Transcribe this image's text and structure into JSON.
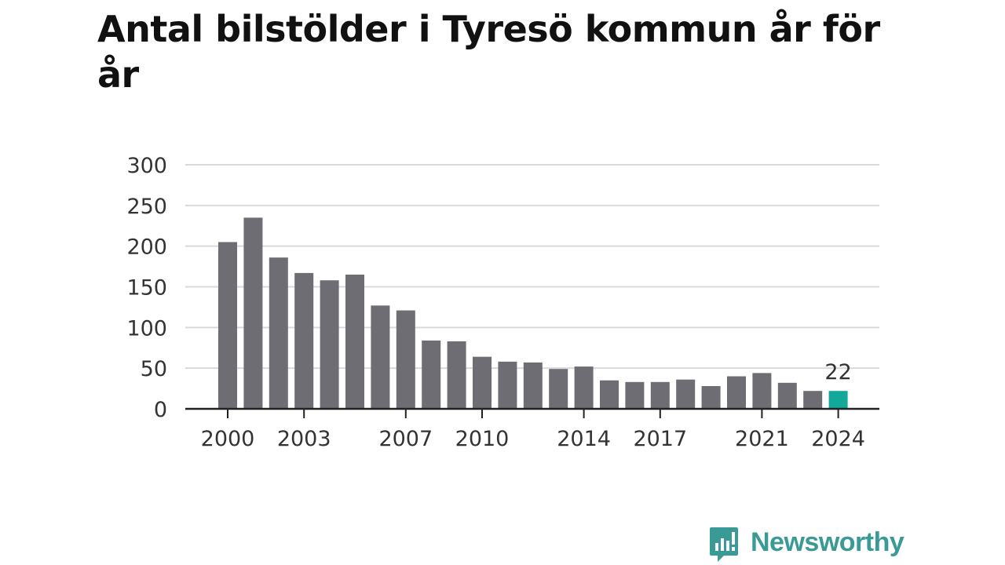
{
  "chart_data": {
    "type": "bar",
    "title": "Antal bilstölder i Tyresö kommun år för år",
    "xlabel": "",
    "ylabel": "",
    "categories": [
      "2000",
      "2001",
      "2002",
      "2003",
      "2004",
      "2005",
      "2006",
      "2007",
      "2008",
      "2009",
      "2010",
      "2011",
      "2012",
      "2013",
      "2014",
      "2015",
      "2016",
      "2017",
      "2018",
      "2019",
      "2020",
      "2021",
      "2022",
      "2023",
      "2024"
    ],
    "values": [
      205,
      235,
      186,
      167,
      158,
      165,
      127,
      121,
      84,
      83,
      64,
      58,
      57,
      49,
      52,
      35,
      33,
      33,
      36,
      28,
      40,
      44,
      32,
      22,
      22
    ],
    "ylim": [
      0,
      300
    ],
    "yticks": [
      0,
      50,
      100,
      150,
      200,
      250,
      300
    ],
    "xtick_labels": [
      "2000",
      "2003",
      "2007",
      "2010",
      "2014",
      "2017",
      "2021",
      "2024"
    ],
    "annotations": [
      {
        "category": "2024",
        "label": "22"
      }
    ],
    "grid": true,
    "colors": {
      "bar": "#6e6d73",
      "highlight": "#12a89a",
      "grid": "#d9d9d9",
      "axis": "#222222"
    }
  },
  "brand": {
    "name": "Newsworthy",
    "icon": "chart-speech-bubble-icon",
    "color": "#3a9a96"
  }
}
